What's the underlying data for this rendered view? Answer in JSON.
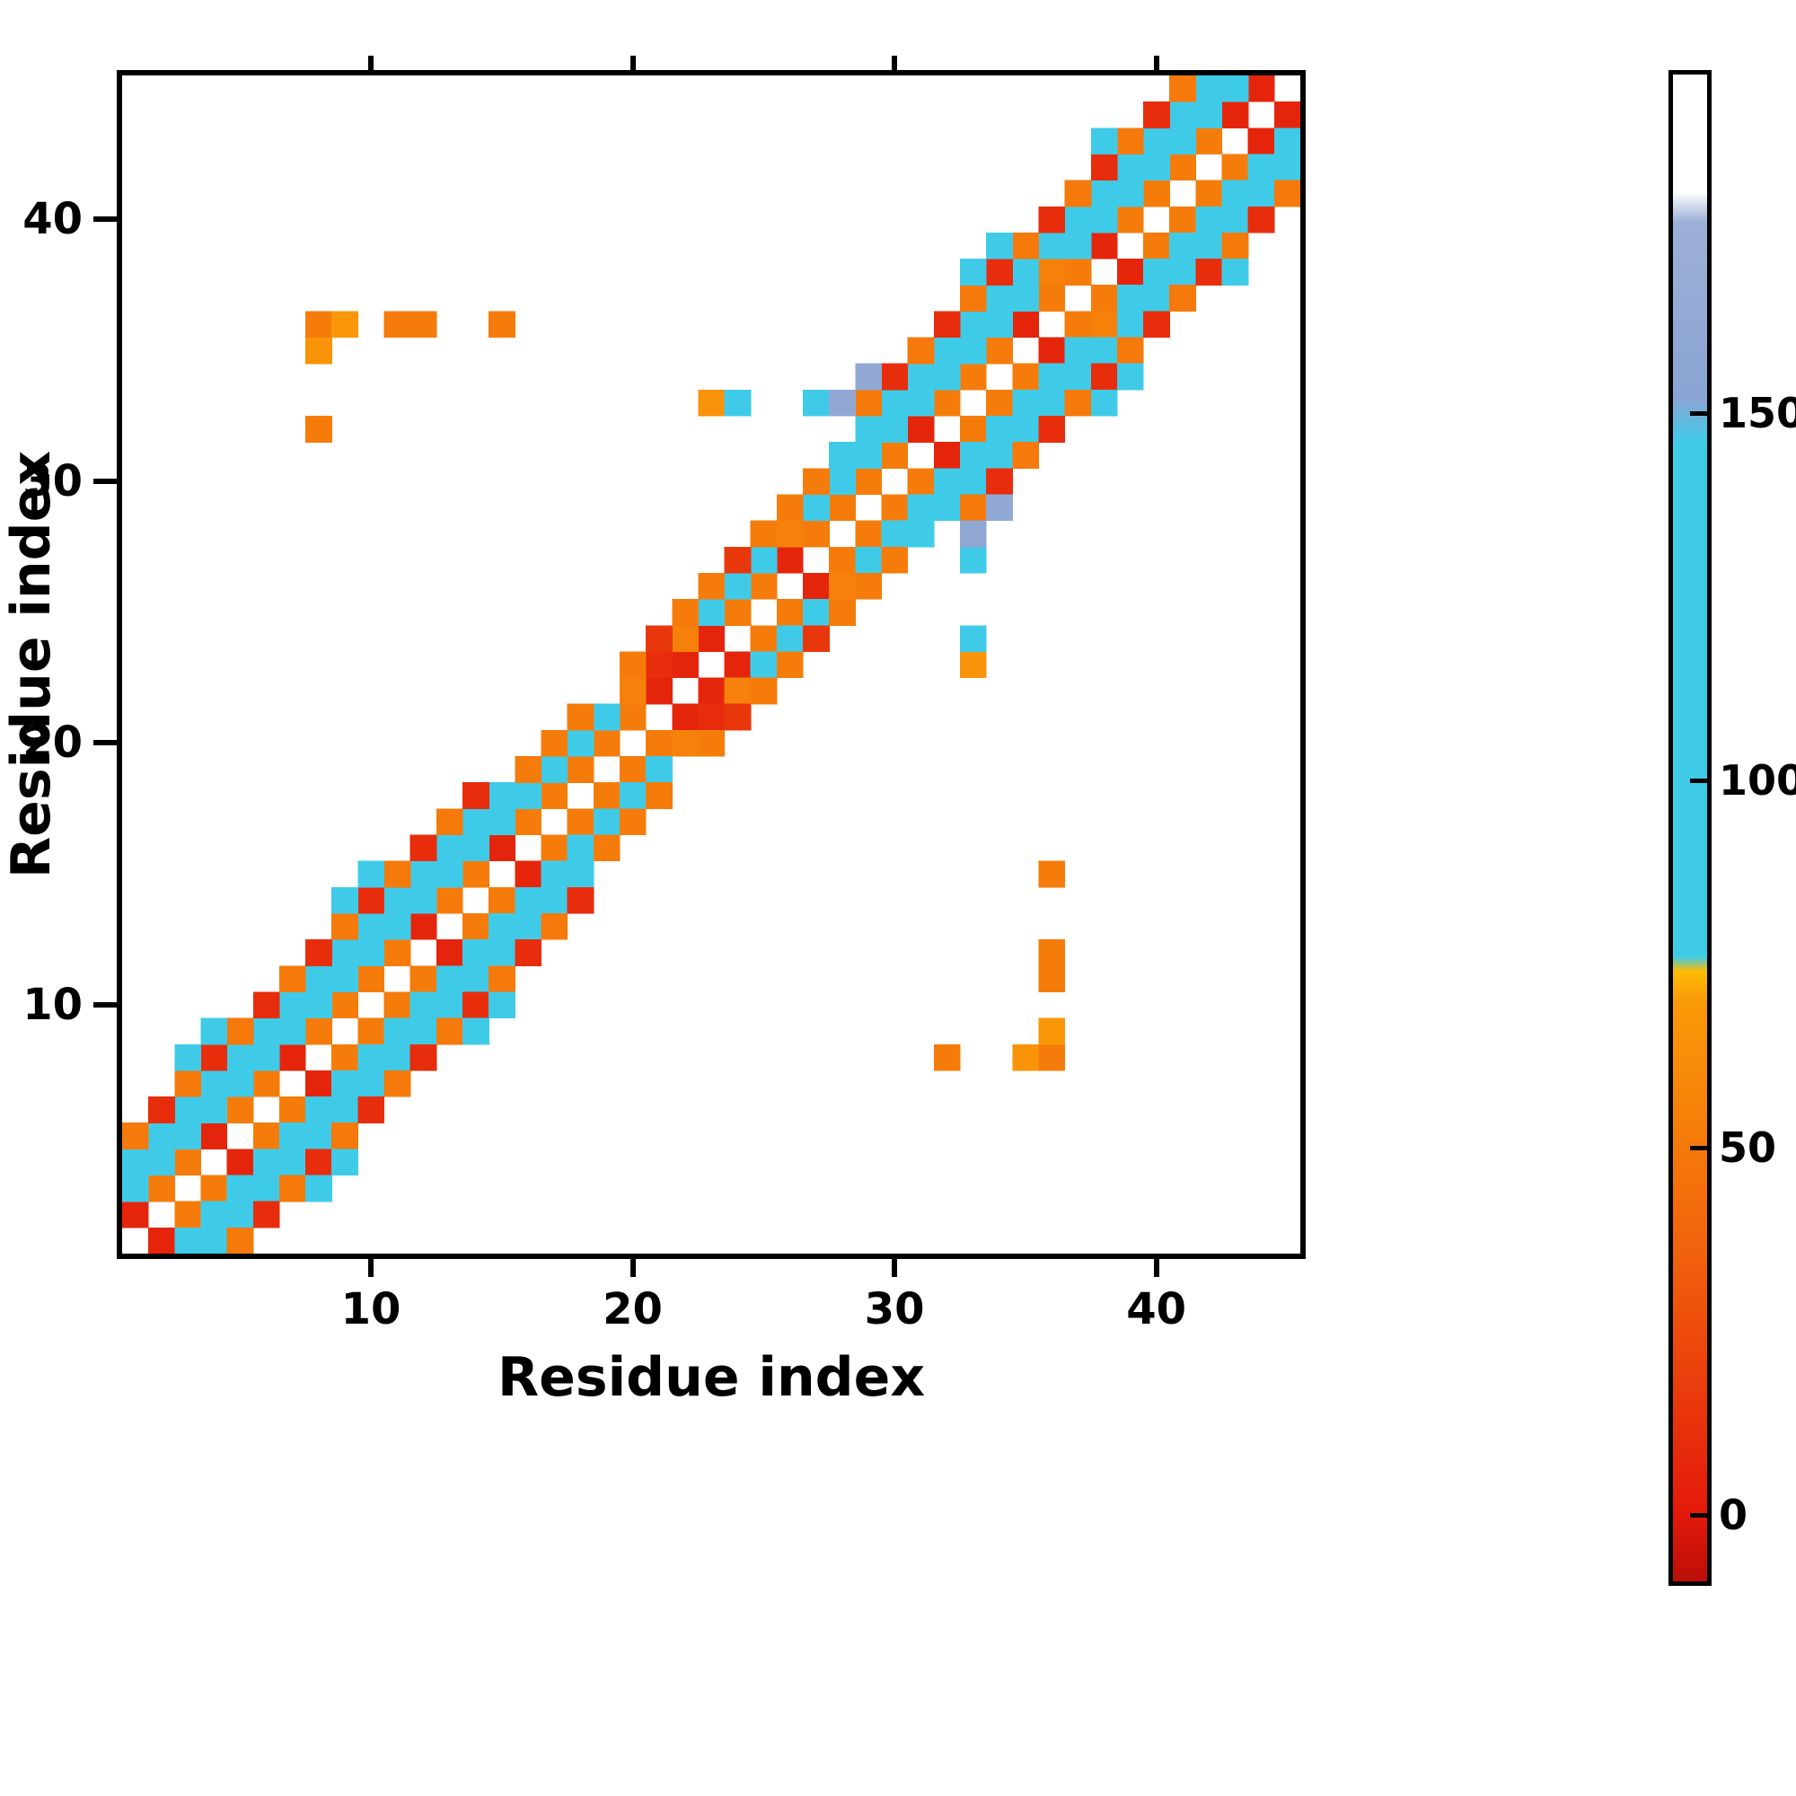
{
  "chart_data": {
    "type": "heatmap",
    "title": "",
    "xlabel": "Residue index",
    "ylabel": "Residue index",
    "n_residues": 45,
    "x_range": [
      1,
      45
    ],
    "y_range": [
      1,
      45
    ],
    "x_ticks": [
      10,
      20,
      30,
      40
    ],
    "y_ticks": [
      10,
      20,
      30,
      40
    ],
    "grid": false,
    "symmetric": true,
    "background_value_color": "#ffffff",
    "colorbar": {
      "position": "right",
      "ticks": [
        0,
        50,
        100,
        150
      ],
      "vmin": -9,
      "vmax": 196,
      "stops": [
        [
          -9,
          "#bb0f0a"
        ],
        [
          0,
          "#e3190b"
        ],
        [
          35,
          "#f1600d"
        ],
        [
          70,
          "#fa9a08"
        ],
        [
          74,
          "#fdbc05"
        ],
        [
          76,
          "#3fcbe8"
        ],
        [
          146,
          "#3fcbe8"
        ],
        [
          152,
          "#8ba4d3"
        ],
        [
          176,
          "#9db0d6"
        ],
        [
          180,
          "#ffffff"
        ],
        [
          196,
          "#ffffff"
        ]
      ]
    },
    "cells": [
      [
        1,
        2,
        6
      ],
      [
        2,
        3,
        52
      ],
      [
        3,
        4,
        52
      ],
      [
        4,
        5,
        6
      ],
      [
        5,
        6,
        52
      ],
      [
        6,
        7,
        52
      ],
      [
        7,
        8,
        6
      ],
      [
        8,
        9,
        52
      ],
      [
        9,
        10,
        52
      ],
      [
        10,
        11,
        52
      ],
      [
        11,
        12,
        52
      ],
      [
        12,
        13,
        6
      ],
      [
        13,
        14,
        52
      ],
      [
        14,
        15,
        52
      ],
      [
        15,
        16,
        6
      ],
      [
        16,
        17,
        52
      ],
      [
        17,
        18,
        52
      ],
      [
        18,
        19,
        52
      ],
      [
        19,
        20,
        52
      ],
      [
        20,
        21,
        52
      ],
      [
        21,
        22,
        6
      ],
      [
        22,
        23,
        6
      ],
      [
        23,
        24,
        6
      ],
      [
        24,
        25,
        52
      ],
      [
        25,
        26,
        52
      ],
      [
        26,
        27,
        6
      ],
      [
        27,
        28,
        52
      ],
      [
        28,
        29,
        52
      ],
      [
        29,
        30,
        52
      ],
      [
        30,
        31,
        52
      ],
      [
        31,
        32,
        6
      ],
      [
        32,
        33,
        52
      ],
      [
        33,
        34,
        52
      ],
      [
        34,
        35,
        52
      ],
      [
        35,
        36,
        6
      ],
      [
        36,
        37,
        52
      ],
      [
        37,
        38,
        52
      ],
      [
        38,
        39,
        6
      ],
      [
        39,
        40,
        52
      ],
      [
        40,
        41,
        52
      ],
      [
        41,
        42,
        52
      ],
      [
        42,
        43,
        52
      ],
      [
        43,
        44,
        6
      ],
      [
        44,
        45,
        6
      ],
      [
        1,
        3,
        100
      ],
      [
        2,
        4,
        100
      ],
      [
        3,
        5,
        100
      ],
      [
        4,
        6,
        100
      ],
      [
        5,
        7,
        100
      ],
      [
        6,
        8,
        100
      ],
      [
        7,
        9,
        100
      ],
      [
        8,
        10,
        100
      ],
      [
        9,
        11,
        100
      ],
      [
        10,
        12,
        100
      ],
      [
        11,
        13,
        100
      ],
      [
        12,
        14,
        100
      ],
      [
        13,
        15,
        100
      ],
      [
        14,
        16,
        100
      ],
      [
        15,
        17,
        100
      ],
      [
        16,
        18,
        100
      ],
      [
        17,
        19,
        100
      ],
      [
        18,
        20,
        100
      ],
      [
        19,
        21,
        100
      ],
      [
        20,
        22,
        55
      ],
      [
        21,
        23,
        10
      ],
      [
        22,
        24,
        55
      ],
      [
        23,
        25,
        100
      ],
      [
        24,
        26,
        100
      ],
      [
        25,
        27,
        100
      ],
      [
        26,
        28,
        55
      ],
      [
        27,
        29,
        100
      ],
      [
        28,
        30,
        100
      ],
      [
        29,
        31,
        100
      ],
      [
        30,
        32,
        100
      ],
      [
        31,
        33,
        100
      ],
      [
        32,
        34,
        100
      ],
      [
        33,
        35,
        100
      ],
      [
        34,
        36,
        100
      ],
      [
        35,
        37,
        100
      ],
      [
        36,
        38,
        55
      ],
      [
        37,
        39,
        100
      ],
      [
        38,
        40,
        100
      ],
      [
        39,
        41,
        100
      ],
      [
        40,
        42,
        100
      ],
      [
        41,
        43,
        100
      ],
      [
        42,
        44,
        100
      ],
      [
        43,
        45,
        100
      ],
      [
        1,
        4,
        103
      ],
      [
        2,
        5,
        103
      ],
      [
        3,
        6,
        103
      ],
      [
        4,
        7,
        103
      ],
      [
        5,
        8,
        103
      ],
      [
        6,
        9,
        103
      ],
      [
        7,
        10,
        103
      ],
      [
        8,
        11,
        103
      ],
      [
        9,
        12,
        103
      ],
      [
        10,
        13,
        103
      ],
      [
        11,
        14,
        103
      ],
      [
        12,
        15,
        103
      ],
      [
        13,
        16,
        103
      ],
      [
        14,
        17,
        103
      ],
      [
        15,
        18,
        103
      ],
      [
        16,
        19,
        52
      ],
      [
        17,
        20,
        52
      ],
      [
        18,
        21,
        52
      ],
      [
        20,
        23,
        52
      ],
      [
        21,
        24,
        15
      ],
      [
        22,
        25,
        52
      ],
      [
        23,
        26,
        52
      ],
      [
        24,
        27,
        15
      ],
      [
        25,
        28,
        52
      ],
      [
        26,
        29,
        52
      ],
      [
        27,
        30,
        52
      ],
      [
        28,
        31,
        103
      ],
      [
        29,
        32,
        103
      ],
      [
        30,
        33,
        103
      ],
      [
        31,
        34,
        103
      ],
      [
        32,
        35,
        103
      ],
      [
        33,
        36,
        103
      ],
      [
        34,
        37,
        103
      ],
      [
        35,
        38,
        103
      ],
      [
        36,
        39,
        103
      ],
      [
        37,
        40,
        103
      ],
      [
        38,
        41,
        103
      ],
      [
        39,
        42,
        103
      ],
      [
        40,
        43,
        103
      ],
      [
        41,
        44,
        103
      ],
      [
        42,
        45,
        103
      ],
      [
        1,
        5,
        50
      ],
      [
        2,
        6,
        10
      ],
      [
        3,
        7,
        50
      ],
      [
        4,
        8,
        10
      ],
      [
        5,
        9,
        50
      ],
      [
        6,
        10,
        10
      ],
      [
        7,
        11,
        50
      ],
      [
        8,
        12,
        10
      ],
      [
        9,
        13,
        50
      ],
      [
        10,
        14,
        10
      ],
      [
        11,
        15,
        50
      ],
      [
        12,
        16,
        10
      ],
      [
        13,
        17,
        50
      ],
      [
        14,
        18,
        10
      ],
      [
        29,
        33,
        50
      ],
      [
        30,
        34,
        10
      ],
      [
        31,
        35,
        50
      ],
      [
        32,
        36,
        10
      ],
      [
        33,
        37,
        50
      ],
      [
        34,
        38,
        10
      ],
      [
        35,
        39,
        50
      ],
      [
        36,
        40,
        10
      ],
      [
        37,
        41,
        50
      ],
      [
        38,
        42,
        10
      ],
      [
        39,
        43,
        50
      ],
      [
        40,
        44,
        10
      ],
      [
        41,
        45,
        50
      ],
      [
        3,
        8,
        100
      ],
      [
        4,
        9,
        100
      ],
      [
        9,
        14,
        100
      ],
      [
        10,
        15,
        100
      ],
      [
        33,
        38,
        100
      ],
      [
        34,
        39,
        100
      ],
      [
        38,
        43,
        100
      ],
      [
        8,
        32,
        52
      ],
      [
        8,
        35,
        66
      ],
      [
        8,
        36,
        52
      ],
      [
        9,
        36,
        68
      ],
      [
        11,
        36,
        52
      ],
      [
        12,
        36,
        52
      ],
      [
        15,
        36,
        52
      ],
      [
        23,
        33,
        66
      ],
      [
        24,
        33,
        100
      ],
      [
        27,
        33,
        100
      ],
      [
        28,
        33,
        160
      ],
      [
        29,
        34,
        160
      ]
    ]
  }
}
